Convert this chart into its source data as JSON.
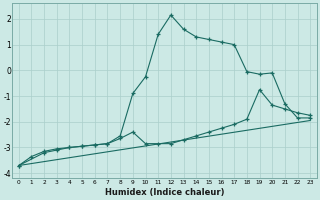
{
  "xlabel": "Humidex (Indice chaleur)",
  "xlim": [
    -0.5,
    23.5
  ],
  "ylim": [
    -4.2,
    2.6
  ],
  "xtick_vals": [
    0,
    1,
    2,
    3,
    4,
    5,
    6,
    7,
    8,
    9,
    10,
    11,
    12,
    13,
    14,
    15,
    16,
    17,
    18,
    19,
    20,
    21,
    22,
    23
  ],
  "ytick_vals": [
    -4,
    -3,
    -2,
    -1,
    0,
    1,
    2
  ],
  "bg_color": "#cce9e5",
  "grid_color": "#aacfcb",
  "line_color": "#1a6b62",
  "line1_x": [
    0,
    1,
    2,
    3,
    4,
    5,
    6,
    7,
    8,
    9,
    10,
    11,
    12,
    13,
    14,
    15,
    16,
    17,
    18,
    19,
    20,
    21,
    22,
    23
  ],
  "line1_y": [
    -3.7,
    -3.35,
    -3.15,
    -3.05,
    -3.0,
    -2.95,
    -2.9,
    -2.85,
    -2.55,
    -0.9,
    -0.25,
    1.4,
    2.15,
    1.6,
    1.3,
    1.2,
    1.1,
    1.0,
    -0.05,
    -0.15,
    -0.1,
    -1.3,
    -1.85,
    -1.85
  ],
  "line2_x": [
    0,
    2,
    3,
    4,
    5,
    6,
    7,
    8,
    9,
    10,
    11,
    12,
    13,
    14,
    15,
    16,
    17,
    18,
    19,
    20,
    21,
    22,
    23
  ],
  "line2_y": [
    -3.7,
    -3.2,
    -3.1,
    -3.0,
    -2.95,
    -2.9,
    -2.85,
    -2.65,
    -2.4,
    -2.85,
    -2.85,
    -2.85,
    -2.7,
    -2.55,
    -2.4,
    -2.25,
    -2.1,
    -1.9,
    -0.75,
    -1.35,
    -1.5,
    -1.65,
    -1.75
  ],
  "line3_x": [
    0,
    23
  ],
  "line3_y": [
    -3.7,
    -1.95
  ]
}
